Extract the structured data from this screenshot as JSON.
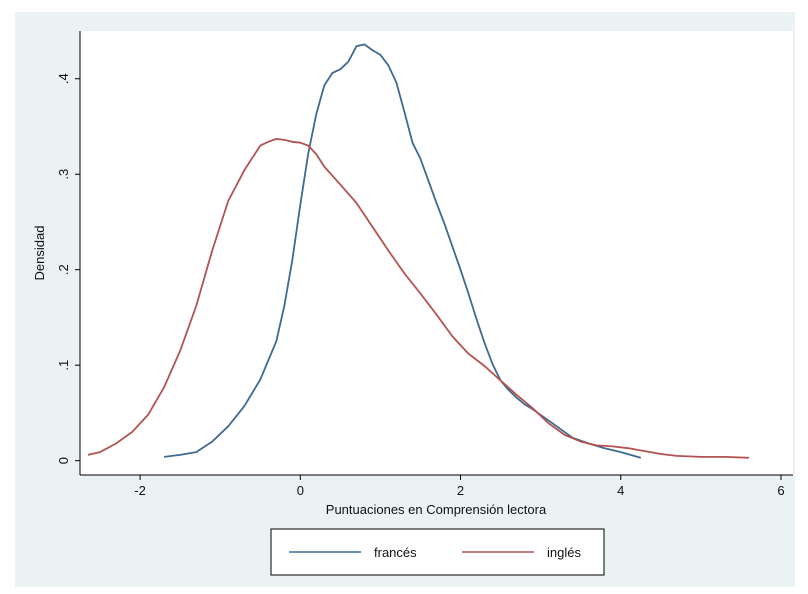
{
  "chart_data": {
    "type": "line",
    "title": "",
    "xlabel": "Puntuaciones en Comprensión lectora",
    "ylabel": "Densidad",
    "xlim": [
      -2.75,
      6.15
    ],
    "ylim": [
      -0.015,
      0.45
    ],
    "xticks": [
      -2,
      0,
      2,
      4,
      6
    ],
    "xtick_labels": [
      "-2",
      "0",
      "2",
      "4",
      "6"
    ],
    "yticks": [
      0,
      0.1,
      0.2,
      0.3,
      0.4
    ],
    "ytick_labels": [
      "0",
      ".1",
      ".2",
      ".3",
      ".4"
    ],
    "grid": false,
    "legend_position": "bottom",
    "series": [
      {
        "name": "francés",
        "color": "#3e6a92",
        "x": [
          -1.7,
          -1.5,
          -1.3,
          -1.1,
          -0.9,
          -0.7,
          -0.5,
          -0.3,
          -0.2,
          -0.1,
          0.0,
          0.1,
          0.2,
          0.3,
          0.4,
          0.5,
          0.6,
          0.7,
          0.8,
          0.9,
          1.0,
          1.1,
          1.2,
          1.3,
          1.4,
          1.5,
          1.6,
          1.7,
          1.8,
          1.9,
          2.0,
          2.1,
          2.2,
          2.3,
          2.4,
          2.5,
          2.6,
          2.7,
          2.8,
          2.9,
          3.0,
          3.2,
          3.4,
          3.6,
          3.8,
          4.0,
          4.25
        ],
        "y": [
          0.004,
          0.006,
          0.009,
          0.02,
          0.036,
          0.057,
          0.085,
          0.125,
          0.162,
          0.21,
          0.268,
          0.322,
          0.363,
          0.393,
          0.406,
          0.41,
          0.418,
          0.434,
          0.436,
          0.43,
          0.425,
          0.414,
          0.396,
          0.365,
          0.333,
          0.316,
          0.293,
          0.27,
          0.248,
          0.224,
          0.2,
          0.175,
          0.148,
          0.123,
          0.101,
          0.084,
          0.074,
          0.066,
          0.059,
          0.054,
          0.048,
          0.036,
          0.024,
          0.018,
          0.013,
          0.009,
          0.003
        ]
      },
      {
        "name": "inglés",
        "color": "#b45250",
        "x": [
          -2.65,
          -2.5,
          -2.3,
          -2.1,
          -1.9,
          -1.7,
          -1.5,
          -1.3,
          -1.1,
          -0.9,
          -0.7,
          -0.5,
          -0.4,
          -0.3,
          -0.2,
          -0.1,
          0.0,
          0.1,
          0.2,
          0.3,
          0.5,
          0.7,
          0.9,
          1.1,
          1.3,
          1.5,
          1.7,
          1.9,
          2.1,
          2.3,
          2.5,
          2.7,
          2.9,
          3.1,
          3.3,
          3.5,
          3.7,
          3.9,
          4.1,
          4.3,
          4.5,
          4.7,
          5.0,
          5.3,
          5.6
        ],
        "y": [
          0.006,
          0.009,
          0.018,
          0.03,
          0.048,
          0.077,
          0.115,
          0.162,
          0.22,
          0.272,
          0.304,
          0.33,
          0.334,
          0.337,
          0.336,
          0.334,
          0.333,
          0.33,
          0.321,
          0.308,
          0.289,
          0.27,
          0.245,
          0.22,
          0.196,
          0.175,
          0.153,
          0.13,
          0.112,
          0.099,
          0.084,
          0.069,
          0.055,
          0.039,
          0.027,
          0.02,
          0.016,
          0.015,
          0.013,
          0.01,
          0.007,
          0.005,
          0.004,
          0.004,
          0.003
        ]
      }
    ]
  }
}
